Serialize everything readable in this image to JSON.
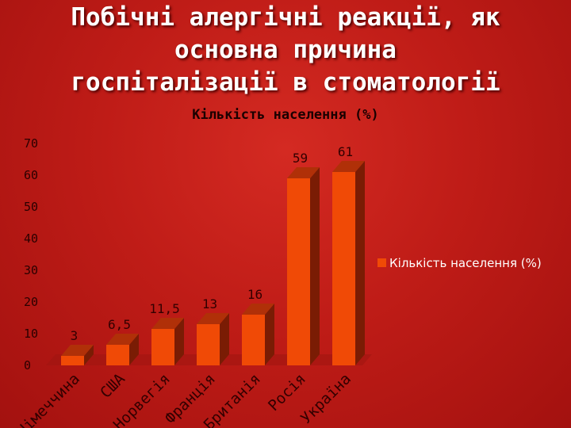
{
  "slide": {
    "title_lines": [
      "Побічні алергічні реакції, як",
      "основна причина",
      "госпіталізації в стоматології"
    ]
  },
  "colors": {
    "background": "#bf1c17",
    "bar_front": "#f04a06",
    "bar_side": "#7a1c04",
    "bar_top": "#b03008",
    "floor": "#9e1510"
  },
  "chart_data": {
    "type": "bar",
    "title": "Кількість населення (%)",
    "categories": [
      "Німеччина",
      "США",
      "Норвегія",
      "Франція",
      "Британія",
      "Росія",
      "Україна"
    ],
    "values": [
      3,
      6.5,
      11.5,
      13,
      16,
      59,
      61
    ],
    "value_labels": [
      "3",
      "6,5",
      "11,5",
      "13",
      "16",
      "59",
      "61"
    ],
    "series": [
      {
        "name": "Кількість населення (%)",
        "values": [
          3,
          6.5,
          11.5,
          13,
          16,
          59,
          61
        ]
      }
    ],
    "ylim": [
      0,
      70
    ],
    "yticks": [
      0,
      10,
      20,
      30,
      40,
      50,
      60,
      70
    ],
    "legend_position": "right",
    "three_d": true
  }
}
